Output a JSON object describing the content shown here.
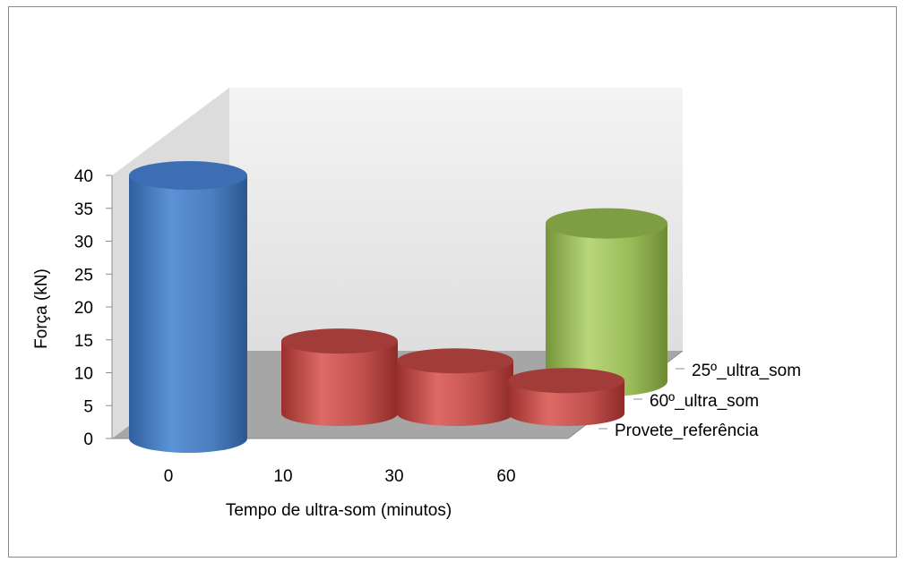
{
  "chart_data": {
    "type": "bar",
    "style": "3d-cylinder",
    "title": "",
    "xlabel": "Tempo de ultra-som (minutos)",
    "ylabel": "Força (kN)",
    "ylim": [
      0,
      40
    ],
    "yticks": [
      0,
      5,
      10,
      15,
      20,
      25,
      30,
      35,
      40
    ],
    "grid": false,
    "categories": [
      "0",
      "10",
      "30",
      "60"
    ],
    "depth_labels": [
      "25º_ultra_som",
      "60º_ultra_som",
      "Provete_referência"
    ],
    "series": [
      {
        "name": "Provete_referência",
        "color": "#4a7ebf",
        "values": [
          40,
          null,
          null,
          null
        ]
      },
      {
        "name": "60º_ultra_som",
        "color": "#c0504d",
        "values": [
          null,
          11,
          8,
          5
        ]
      },
      {
        "name": "25º_ultra_som",
        "color": "#9bbb59",
        "values": [
          null,
          null,
          null,
          24
        ]
      }
    ],
    "colors": {
      "wall": "#ececec",
      "floor": "#a6a6a6",
      "wall_edge": "#c8c8c8"
    }
  }
}
